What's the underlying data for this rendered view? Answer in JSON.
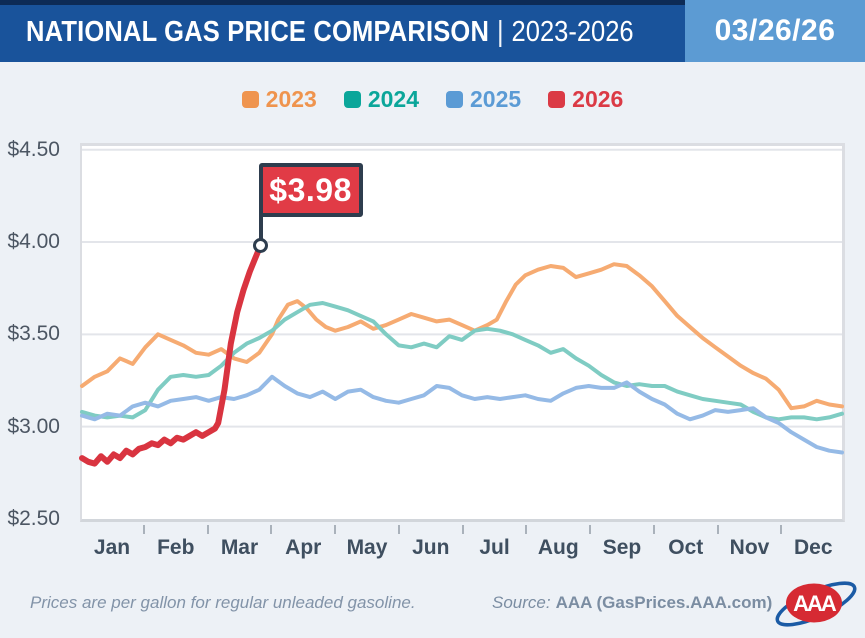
{
  "header": {
    "title": "NATIONAL GAS PRICE COMPARISON",
    "divider": "|",
    "years": "2023-2026",
    "date": "03/26/26"
  },
  "legend": [
    {
      "label": "2023",
      "color": "#EF944E"
    },
    {
      "label": "2024",
      "color": "#0BA69A"
    },
    {
      "label": "2025",
      "color": "#5B9BD5"
    },
    {
      "label": "2026",
      "color": "#DB3A45"
    }
  ],
  "chart_data": {
    "type": "line",
    "title": "National Gas Price Comparison | 2023-2026",
    "xlabel": "",
    "ylabel": "",
    "x_units": "months (0 = Jan 1, 12 = Dec 31)",
    "ylim": [
      2.5,
      4.52
    ],
    "yticks": [
      "$4.50",
      "$4.00",
      "$3.50",
      "$3.00",
      "$2.50"
    ],
    "ytick_values": [
      4.5,
      4.0,
      3.5,
      3.0,
      2.5
    ],
    "gridline_values": [
      4.5,
      4.0,
      3.5,
      3.0
    ],
    "months": [
      "Jan",
      "Feb",
      "Mar",
      "Apr",
      "May",
      "Jun",
      "Jul",
      "Aug",
      "Sep",
      "Oct",
      "Nov",
      "Dec"
    ],
    "grid": true,
    "legend_position": "top",
    "series": [
      {
        "name": "2023",
        "color": "#F6AB72",
        "line_width": 4,
        "x": [
          0.0,
          0.2,
          0.4,
          0.6,
          0.8,
          1.0,
          1.2,
          1.4,
          1.6,
          1.8,
          2.0,
          2.2,
          2.4,
          2.6,
          2.8,
          3.0,
          3.1,
          3.25,
          3.4,
          3.55,
          3.7,
          3.85,
          4.0,
          4.2,
          4.4,
          4.6,
          4.8,
          5.0,
          5.2,
          5.4,
          5.6,
          5.8,
          6.0,
          6.2,
          6.4,
          6.55,
          6.7,
          6.85,
          7.0,
          7.2,
          7.4,
          7.6,
          7.8,
          8.0,
          8.2,
          8.4,
          8.6,
          8.8,
          9.0,
          9.2,
          9.4,
          9.6,
          9.8,
          10.0,
          10.2,
          10.4,
          10.6,
          10.8,
          11.0,
          11.2,
          11.4,
          11.6,
          11.8,
          12.0
        ],
        "y": [
          3.22,
          3.27,
          3.3,
          3.37,
          3.34,
          3.43,
          3.5,
          3.47,
          3.44,
          3.4,
          3.39,
          3.42,
          3.37,
          3.35,
          3.4,
          3.5,
          3.58,
          3.66,
          3.68,
          3.64,
          3.58,
          3.54,
          3.52,
          3.54,
          3.57,
          3.53,
          3.55,
          3.58,
          3.61,
          3.59,
          3.57,
          3.58,
          3.55,
          3.52,
          3.55,
          3.58,
          3.68,
          3.77,
          3.82,
          3.85,
          3.87,
          3.86,
          3.81,
          3.83,
          3.85,
          3.88,
          3.87,
          3.82,
          3.76,
          3.68,
          3.6,
          3.54,
          3.48,
          3.43,
          3.38,
          3.33,
          3.29,
          3.26,
          3.2,
          3.1,
          3.11,
          3.14,
          3.12,
          3.11
        ]
      },
      {
        "name": "2024",
        "color": "#7FCCC3",
        "line_width": 4,
        "x": [
          0.0,
          0.2,
          0.4,
          0.6,
          0.8,
          1.0,
          1.2,
          1.4,
          1.6,
          1.8,
          2.0,
          2.2,
          2.4,
          2.6,
          2.8,
          3.0,
          3.2,
          3.4,
          3.6,
          3.8,
          4.0,
          4.2,
          4.4,
          4.6,
          4.8,
          5.0,
          5.2,
          5.4,
          5.6,
          5.8,
          6.0,
          6.2,
          6.4,
          6.6,
          6.8,
          7.0,
          7.2,
          7.4,
          7.6,
          7.8,
          8.0,
          8.2,
          8.4,
          8.6,
          8.8,
          9.0,
          9.2,
          9.4,
          9.6,
          9.8,
          10.0,
          10.2,
          10.4,
          10.6,
          10.8,
          11.0,
          11.2,
          11.4,
          11.6,
          11.8,
          12.0
        ],
        "y": [
          3.08,
          3.06,
          3.05,
          3.06,
          3.05,
          3.09,
          3.2,
          3.27,
          3.28,
          3.27,
          3.28,
          3.33,
          3.4,
          3.45,
          3.48,
          3.52,
          3.58,
          3.62,
          3.66,
          3.67,
          3.65,
          3.63,
          3.6,
          3.57,
          3.5,
          3.44,
          3.43,
          3.45,
          3.43,
          3.49,
          3.47,
          3.52,
          3.53,
          3.52,
          3.5,
          3.47,
          3.44,
          3.4,
          3.42,
          3.37,
          3.33,
          3.28,
          3.24,
          3.22,
          3.23,
          3.22,
          3.22,
          3.19,
          3.17,
          3.15,
          3.14,
          3.13,
          3.12,
          3.08,
          3.05,
          3.04,
          3.05,
          3.05,
          3.04,
          3.05,
          3.07
        ]
      },
      {
        "name": "2025",
        "color": "#95BAE6",
        "line_width": 4,
        "x": [
          0.0,
          0.2,
          0.4,
          0.6,
          0.8,
          1.0,
          1.2,
          1.4,
          1.6,
          1.8,
          2.0,
          2.2,
          2.4,
          2.6,
          2.8,
          3.0,
          3.2,
          3.4,
          3.6,
          3.8,
          4.0,
          4.2,
          4.4,
          4.6,
          4.8,
          5.0,
          5.2,
          5.4,
          5.6,
          5.8,
          6.0,
          6.2,
          6.4,
          6.6,
          6.8,
          7.0,
          7.2,
          7.4,
          7.6,
          7.8,
          8.0,
          8.2,
          8.4,
          8.6,
          8.8,
          9.0,
          9.2,
          9.4,
          9.6,
          9.8,
          10.0,
          10.2,
          10.4,
          10.6,
          10.8,
          11.0,
          11.2,
          11.4,
          11.6,
          11.8,
          12.0
        ],
        "y": [
          3.06,
          3.04,
          3.07,
          3.06,
          3.11,
          3.13,
          3.11,
          3.14,
          3.15,
          3.16,
          3.14,
          3.16,
          3.15,
          3.17,
          3.2,
          3.27,
          3.22,
          3.18,
          3.16,
          3.19,
          3.15,
          3.19,
          3.2,
          3.16,
          3.14,
          3.13,
          3.15,
          3.17,
          3.22,
          3.21,
          3.17,
          3.15,
          3.16,
          3.15,
          3.16,
          3.17,
          3.15,
          3.14,
          3.18,
          3.21,
          3.22,
          3.21,
          3.21,
          3.24,
          3.19,
          3.15,
          3.12,
          3.07,
          3.04,
          3.06,
          3.09,
          3.08,
          3.09,
          3.1,
          3.05,
          3.02,
          2.97,
          2.93,
          2.89,
          2.87,
          2.86
        ]
      },
      {
        "name": "2026",
        "color": "#D93440",
        "line_width": 6,
        "x": [
          0.0,
          0.1,
          0.2,
          0.3,
          0.4,
          0.5,
          0.6,
          0.7,
          0.8,
          0.9,
          1.0,
          1.1,
          1.2,
          1.3,
          1.4,
          1.5,
          1.6,
          1.7,
          1.8,
          1.9,
          2.0,
          2.1,
          2.15,
          2.25,
          2.35,
          2.45,
          2.55,
          2.65,
          2.72,
          2.78,
          2.82
        ],
        "y": [
          2.83,
          2.81,
          2.8,
          2.84,
          2.81,
          2.85,
          2.83,
          2.87,
          2.85,
          2.88,
          2.89,
          2.91,
          2.9,
          2.93,
          2.91,
          2.94,
          2.93,
          2.95,
          2.97,
          2.95,
          2.97,
          2.99,
          3.02,
          3.2,
          3.45,
          3.62,
          3.74,
          3.84,
          3.9,
          3.95,
          3.98
        ]
      }
    ],
    "annotation": {
      "label": "$3.98",
      "series": "2026",
      "x": 2.82,
      "y": 3.98
    }
  },
  "footer": {
    "note": "Prices are per gallon for regular unleaded gasoline.",
    "source_prefix": "Source:",
    "source_text": "AAA (GasPrices.AAA.com)",
    "logo_text": "AAA"
  }
}
